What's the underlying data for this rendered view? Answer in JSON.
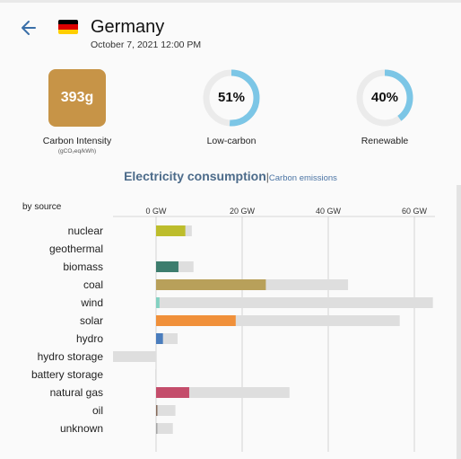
{
  "header": {
    "country": "Germany",
    "datetime": "October 7, 2021 12:00 PM",
    "flag_colors": [
      "#000000",
      "#dd0000",
      "#ffce00"
    ]
  },
  "metrics": {
    "carbon_intensity": {
      "value": "393g",
      "label": "Carbon Intensity",
      "unit": "(gCO₂eq/kWh)",
      "color": "#c79447"
    },
    "low_carbon": {
      "value": "51%",
      "fraction": 0.51,
      "label": "Low-carbon",
      "color": "#7cc6e6"
    },
    "renewable": {
      "value": "40%",
      "fraction": 0.4,
      "label": "Renewable",
      "color": "#7cc6e6"
    }
  },
  "tabs": {
    "active": "Electricity consumption",
    "separator": "|",
    "inactive": "Carbon emissions"
  },
  "chart_label": "by source",
  "chart_data": {
    "type": "bar",
    "orientation": "horizontal",
    "xlabel": "",
    "xlim": [
      -10,
      64
    ],
    "ticks": [
      0,
      20,
      40,
      60
    ],
    "tick_labels": [
      "0 GW",
      "20 GW",
      "40 GW",
      "60 GW"
    ],
    "categories": [
      "nuclear",
      "geothermal",
      "biomass",
      "coal",
      "wind",
      "solar",
      "hydro",
      "hydro storage",
      "battery storage",
      "natural gas",
      "oil",
      "unknown"
    ],
    "series": [
      {
        "values": [
          6.8,
          0,
          5.2,
          25.5,
          0.8,
          18.5,
          1.6,
          0,
          0,
          7.7,
          0.2,
          0.3
        ]
      },
      {
        "values": [
          8.3,
          0,
          8.7,
          44.6,
          64.3,
          56.6,
          5.0,
          -10.0,
          -0.2,
          31.0,
          4.5,
          3.9
        ]
      }
    ],
    "colors": {
      "nuclear": "#bdbd2c",
      "geothermal": "#bdbd2c",
      "biomass": "#3d7d6e",
      "coal": "#b8a05a",
      "wind": "#83d1c1",
      "solar": "#f0903a",
      "hydro": "#4a7dbd",
      "hydro storage": "#4a7dbd",
      "battery storage": "#4a7dbd",
      "natural gas": "#c44d6b",
      "oil": "#866a5a",
      "unknown": "#a5a5a5"
    },
    "capacity_color": "#dedede",
    "grid": true
  }
}
